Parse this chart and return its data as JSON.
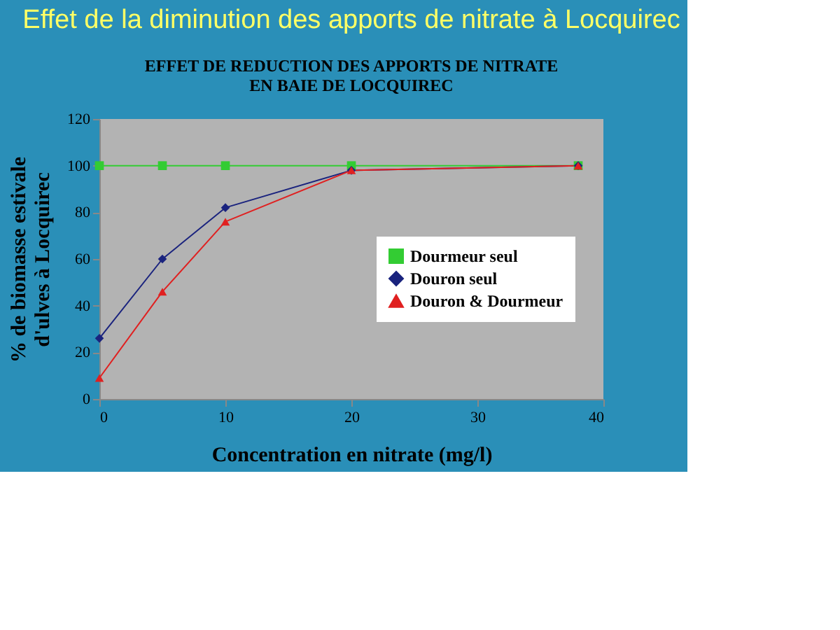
{
  "chart_data": {
    "type": "line",
    "title": "Effet de la diminution des apports de nitrate à Locquirec",
    "subtitle": "EFFET DE REDUCTION DES APPORTS DE NITRATE\nEN BAIE DE LOCQUIREC",
    "xlabel": "Concentration en nitrate (mg/l)",
    "ylabel": "% de biomasse estivale\nd'ulves à Locquirec",
    "xlim": [
      0,
      40
    ],
    "xticks": [
      0,
      10,
      20,
      30,
      40
    ],
    "ylim": [
      0,
      120
    ],
    "yticks": [
      0,
      20,
      40,
      60,
      80,
      100,
      120
    ],
    "grid": false,
    "legend": "right",
    "line_style": "solid",
    "series": [
      {
        "name": "Dourmeur seul",
        "color": "#33cc33",
        "marker": "square",
        "x": [
          0,
          5,
          10,
          20,
          38
        ],
        "values": [
          100,
          100,
          100,
          100,
          100
        ]
      },
      {
        "name": "Douron seul",
        "color": "#1a237e",
        "marker": "diamond",
        "x": [
          0,
          5,
          10,
          20,
          38
        ],
        "values": [
          26,
          60,
          82,
          98,
          100
        ]
      },
      {
        "name": "Douron & Dourmeur",
        "color": "#e02020",
        "marker": "triangle",
        "x": [
          0,
          5,
          10,
          20,
          38
        ],
        "values": [
          9,
          46,
          76,
          98,
          100
        ]
      }
    ]
  }
}
